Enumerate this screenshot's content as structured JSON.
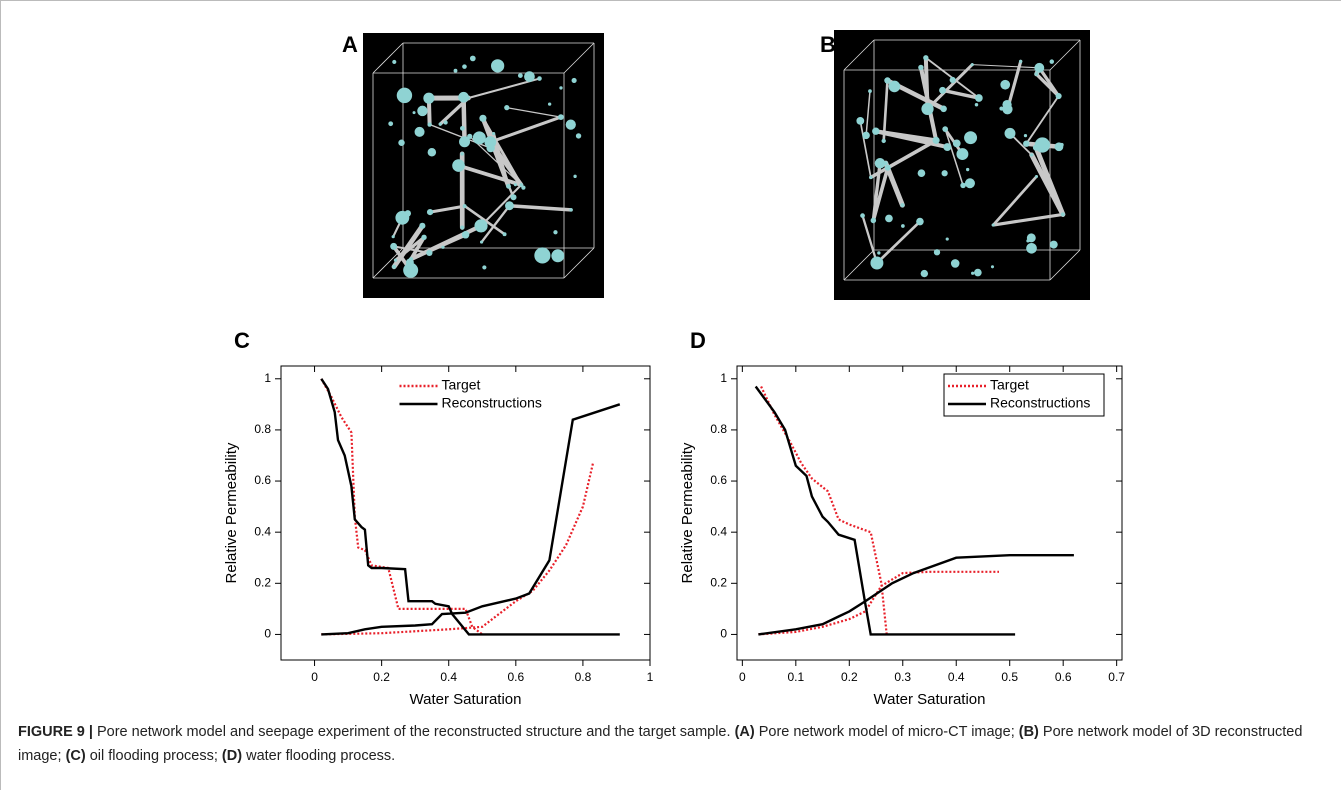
{
  "panels": [
    {
      "label": "A"
    },
    {
      "label": "B"
    }
  ],
  "chart_data": [
    {
      "type": "line",
      "panel": "C",
      "xlabel": "Water Saturation",
      "ylabel": "Relative Permeability",
      "xlim": [
        -0.1,
        1.0
      ],
      "xticks": [
        0.0,
        0.2,
        0.4,
        0.6,
        0.8,
        1.0
      ],
      "ylim": [
        -0.1,
        1.05
      ],
      "yticks": [
        0.0,
        0.2,
        0.4,
        0.6,
        0.8,
        1.0
      ],
      "legend": "upper center",
      "legend_frame": false,
      "series": [
        {
          "name": "Target",
          "color": "#e8202a",
          "linestyle": "dotted",
          "x": [
            0.02,
            0.05,
            0.08,
            0.11,
            0.12,
            0.13,
            0.15,
            0.17,
            0.22,
            0.25,
            0.35,
            0.45,
            0.47,
            0.5,
            null,
            0.02,
            0.2,
            0.4,
            0.5,
            0.55,
            0.6,
            0.65,
            0.7,
            0.75,
            0.8,
            0.83
          ],
          "values": [
            1.0,
            0.93,
            0.85,
            0.79,
            0.46,
            0.34,
            0.33,
            0.27,
            0.26,
            0.1,
            0.1,
            0.1,
            0.03,
            0.0,
            null,
            0.0,
            0.005,
            0.02,
            0.03,
            0.08,
            0.13,
            0.17,
            0.25,
            0.35,
            0.5,
            0.67
          ]
        },
        {
          "name": "Reconstructions",
          "color": "#000000",
          "linestyle": "solid",
          "x": [
            0.02,
            0.04,
            0.06,
            0.07,
            0.09,
            0.11,
            0.12,
            0.14,
            0.15,
            0.16,
            0.17,
            0.2,
            0.27,
            0.28,
            0.35,
            0.36,
            0.4,
            0.41,
            0.46,
            0.91,
            null,
            0.02,
            0.1,
            0.15,
            0.2,
            0.3,
            0.35,
            0.38,
            0.45,
            0.5,
            0.6,
            0.64,
            0.7,
            0.77,
            0.91
          ],
          "values": [
            1.0,
            0.96,
            0.87,
            0.76,
            0.7,
            0.58,
            0.45,
            0.42,
            0.41,
            0.27,
            0.26,
            0.26,
            0.255,
            0.13,
            0.13,
            0.12,
            0.11,
            0.08,
            0.0,
            0.0,
            null,
            0.0,
            0.005,
            0.02,
            0.03,
            0.035,
            0.04,
            0.08,
            0.085,
            0.11,
            0.14,
            0.16,
            0.29,
            0.84,
            0.9
          ]
        }
      ]
    },
    {
      "type": "line",
      "panel": "D",
      "xlabel": "Water Saturation",
      "ylabel": "Relative Permeability",
      "xlim": [
        -0.01,
        0.71
      ],
      "xticks": [
        0.0,
        0.1,
        0.2,
        0.3,
        0.4,
        0.5,
        0.6,
        0.7
      ],
      "ylim": [
        -0.1,
        1.05
      ],
      "yticks": [
        0.0,
        0.2,
        0.4,
        0.6,
        0.8,
        1.0
      ],
      "legend": "upper right",
      "legend_frame": true,
      "series": [
        {
          "name": "Target",
          "color": "#e8202a",
          "linestyle": "dotted",
          "x": [
            0.035,
            0.06,
            0.09,
            0.11,
            0.13,
            0.16,
            0.18,
            0.2,
            0.24,
            0.26,
            0.27,
            null,
            0.03,
            0.1,
            0.15,
            0.2,
            0.23,
            0.26,
            0.3,
            0.35,
            0.4,
            0.48
          ],
          "values": [
            0.97,
            0.86,
            0.75,
            0.67,
            0.61,
            0.56,
            0.45,
            0.43,
            0.4,
            0.2,
            0.0,
            null,
            0.0,
            0.01,
            0.03,
            0.06,
            0.09,
            0.19,
            0.24,
            0.245,
            0.245,
            0.245
          ]
        },
        {
          "name": "Reconstructions",
          "color": "#000000",
          "linestyle": "solid",
          "x": [
            0.025,
            0.06,
            0.08,
            0.1,
            0.12,
            0.13,
            0.15,
            0.16,
            0.18,
            0.21,
            0.23,
            0.24,
            0.51,
            null,
            0.03,
            0.1,
            0.15,
            0.18,
            0.2,
            0.23,
            0.28,
            0.32,
            0.4,
            0.5,
            0.62
          ],
          "values": [
            0.97,
            0.87,
            0.8,
            0.66,
            0.62,
            0.54,
            0.46,
            0.44,
            0.39,
            0.37,
            0.12,
            0.0,
            0.0,
            null,
            0.0,
            0.02,
            0.04,
            0.07,
            0.09,
            0.13,
            0.2,
            0.24,
            0.3,
            0.31,
            0.31
          ]
        }
      ]
    }
  ],
  "caption": {
    "label": "FIGURE 9 |",
    "parts": [
      " Pore network model and seepage experiment of the reconstructed structure and the target sample. ",
      "(A)",
      " Pore network model of micro-CT image; ",
      "(B)",
      " Pore network model of 3D reconstructed image; ",
      "(C)",
      " oil flooding process; ",
      "(D)",
      " water flooding process."
    ]
  }
}
